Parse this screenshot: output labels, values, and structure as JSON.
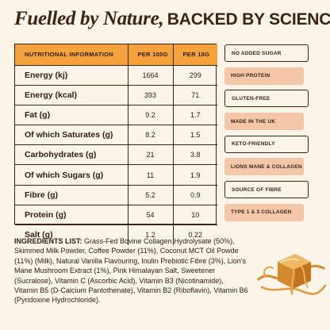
{
  "headline": {
    "script_text": "Fuelled by Nature,",
    "caps_text": "BACKED BY SCIENCE"
  },
  "table": {
    "headers": [
      "NUTRITIONAL INFORMATION",
      "PER 100G",
      "PER 18G"
    ],
    "rows": [
      {
        "label": "Energy (kj)",
        "per100": "1664",
        "per18": "299"
      },
      {
        "label": "Energy (kcal)",
        "per100": "393",
        "per18": "71"
      },
      {
        "label": "Fat (g)",
        "per100": "9.2",
        "per18": "1.7"
      },
      {
        "label": "Of which Saturates (g)",
        "per100": "8.2",
        "per18": "1.5"
      },
      {
        "label": "Carbohydrates (g)",
        "per100": "21",
        "per18": "3.8"
      },
      {
        "label": "Of which Sugars (g)",
        "per100": "11",
        "per18": "1.9"
      },
      {
        "label": "Fibre (g)",
        "per100": "5.2",
        "per18": "0.9"
      },
      {
        "label": "Protein (g)",
        "per100": "54",
        "per18": "10"
      },
      {
        "label": "Salt (g)",
        "per100": "1.2",
        "per18": "0.22"
      }
    ]
  },
  "badges": [
    {
      "label": "NO ADDED SUGAR",
      "style": "outline"
    },
    {
      "label": "HIGH PROTEIN",
      "style": "filled"
    },
    {
      "label": "GLUTEN-FREE",
      "style": "outline"
    },
    {
      "label": "MADE IN THE UK",
      "style": "filled"
    },
    {
      "label": "KETO-FRIENDLY",
      "style": "outline"
    },
    {
      "label": "LIONS MANE & COLLAGEN",
      "style": "filled"
    },
    {
      "label": "SOURCE OF FIBRE",
      "style": "outline"
    },
    {
      "label": "TYPE 1 & 3 COLLAGEN",
      "style": "filled"
    }
  ],
  "ingredients": {
    "label": "INGREDIENTS LIST:",
    "text": " Grass-Fed Bovine Collagen Hydrolysate (50%), Skimmed Milk Powder, Coffee Powder (11%), Coconut MCT Oil Powde (11%) (Milk), Natural Vanilla Flavouring, Inulin Prebiotic Fibre (3%), Lion's Mane Mushroom Extract (1%), Pink Himalayan Salt, Sweetener (Sucralose), Vitamin C (Ascorbic Acid), Vitamin B3 (Nicotinamide), Vitamin B5 (D-Calcium Pantothenate), Vitamin B2 (Riboflavin), Vitamin B6 (Pyridoxine Hydrochloride)."
  },
  "colors": {
    "background": "#fbf4e8",
    "header_orange": "#f3a23c",
    "badge_peach": "#f4c7a8",
    "text_brown": "#3b2416"
  },
  "image": {
    "icon": "caramel-cube-image"
  }
}
